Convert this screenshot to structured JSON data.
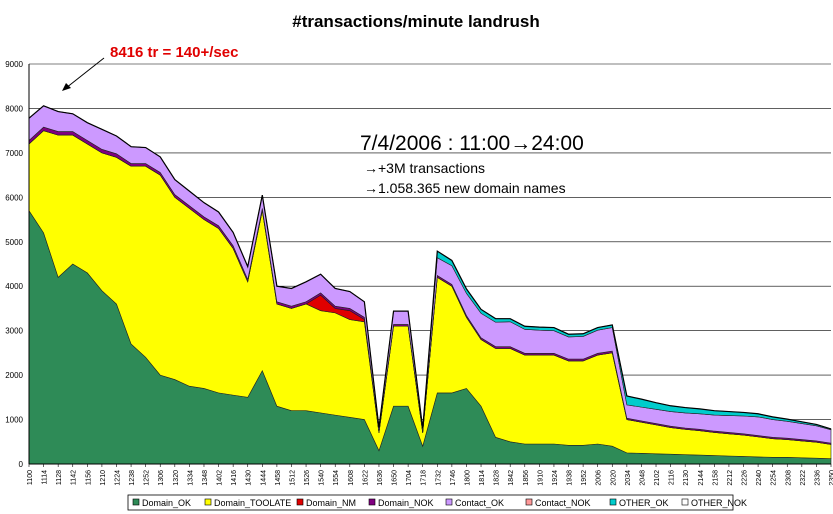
{
  "chart_data": {
    "type": "area",
    "stacked": true,
    "title": "#transactions/minute landrush",
    "xlabel": "",
    "ylabel": "",
    "ylim": [
      0,
      9000
    ],
    "yticks": [
      0,
      1000,
      2000,
      3000,
      4000,
      5000,
      6000,
      7000,
      8000,
      9000
    ],
    "grid": true,
    "legend": "bottom",
    "xtick_labels": [
      "1100",
      "1114",
      "1128",
      "1142",
      "1156",
      "1210",
      "1224",
      "1238",
      "1252",
      "1306",
      "1320",
      "1334",
      "1348",
      "1402",
      "1416",
      "1430",
      "1444",
      "1458",
      "1512",
      "1526",
      "1540",
      "1554",
      "1608",
      "1622",
      "1636",
      "1650",
      "1704",
      "1718",
      "1732",
      "1746",
      "1800",
      "1814",
      "1828",
      "1842",
      "1856",
      "1910",
      "1924",
      "1938",
      "1952",
      "2006",
      "2020",
      "2034",
      "2048",
      "2102",
      "2116",
      "2130",
      "2144",
      "2158",
      "2212",
      "2226",
      "2240",
      "2254",
      "2308",
      "2322",
      "2336",
      "2350"
    ],
    "x": [
      "1100",
      "1114",
      "1128",
      "1142",
      "1156",
      "1210",
      "1224",
      "1238",
      "1252",
      "1306",
      "1320",
      "1334",
      "1348",
      "1402",
      "1416",
      "1430",
      "1444",
      "1458",
      "1512",
      "1526",
      "1540",
      "1554",
      "1608",
      "1622",
      "1636",
      "1650",
      "1704",
      "1718",
      "1732",
      "1746",
      "1800",
      "1814",
      "1828",
      "1842",
      "1856",
      "1910",
      "1924",
      "1938",
      "1952",
      "2006",
      "2020",
      "2034",
      "2048",
      "2102",
      "2116",
      "2130",
      "2144",
      "2158",
      "2212",
      "2226",
      "2240",
      "2254",
      "2308",
      "2322",
      "2336",
      "2350"
    ],
    "series": [
      {
        "name": "Domain_OK",
        "color": "#2e8b57",
        "values": [
          5700,
          5200,
          4200,
          4500,
          4300,
          3900,
          3600,
          2700,
          2400,
          2000,
          1900,
          1750,
          1700,
          1600,
          1550,
          1500,
          2100,
          1300,
          1200,
          1200,
          1150,
          1100,
          1050,
          1000,
          300,
          1300,
          1300,
          400,
          1600,
          1600,
          1700,
          1300,
          600,
          500,
          450,
          450,
          450,
          420,
          420,
          450,
          400,
          250,
          240,
          230,
          220,
          210,
          200,
          190,
          180,
          170,
          160,
          150,
          150,
          140,
          130,
          120
        ]
      },
      {
        "name": "Domain_TOOLATE",
        "color": "#ffff00",
        "values": [
          1500,
          2300,
          3200,
          2900,
          2900,
          3100,
          3300,
          4000,
          4300,
          4500,
          4100,
          4000,
          3800,
          3700,
          3300,
          2600,
          3600,
          2300,
          2300,
          2400,
          2300,
          2300,
          2200,
          2200,
          400,
          1800,
          1800,
          300,
          2600,
          2400,
          1600,
          1500,
          2000,
          2100,
          2000,
          2000,
          2000,
          1900,
          1900,
          2000,
          2100,
          750,
          700,
          650,
          600,
          570,
          550,
          520,
          500,
          480,
          450,
          420,
          400,
          380,
          360,
          320
        ]
      },
      {
        "name": "Domain_NM",
        "color": "#e00000",
        "values": [
          0,
          0,
          0,
          0,
          0,
          0,
          0,
          0,
          0,
          0,
          0,
          0,
          0,
          0,
          0,
          0,
          0,
          0,
          0,
          0,
          350,
          100,
          200,
          50,
          0,
          0,
          0,
          0,
          0,
          0,
          0,
          0,
          0,
          0,
          0,
          0,
          0,
          0,
          0,
          0,
          0,
          0,
          0,
          0,
          0,
          0,
          0,
          0,
          0,
          0,
          0,
          0,
          0,
          0,
          0,
          0
        ]
      },
      {
        "name": "Domain_NOK",
        "color": "#800080",
        "values": [
          80,
          80,
          80,
          80,
          80,
          80,
          80,
          60,
          60,
          60,
          60,
          60,
          60,
          60,
          60,
          50,
          50,
          50,
          50,
          50,
          50,
          50,
          50,
          50,
          20,
          40,
          40,
          20,
          40,
          40,
          40,
          40,
          40,
          40,
          40,
          40,
          40,
          40,
          40,
          40,
          40,
          30,
          30,
          30,
          30,
          30,
          30,
          30,
          30,
          30,
          30,
          30,
          30,
          30,
          30,
          30
        ]
      },
      {
        "name": "Contact_OK",
        "color": "#cc99ff",
        "values": [
          500,
          480,
          450,
          400,
          400,
          450,
          400,
          380,
          360,
          350,
          340,
          330,
          320,
          310,
          300,
          290,
          300,
          350,
          400,
          450,
          420,
          400,
          380,
          350,
          100,
          300,
          300,
          80,
          400,
          420,
          500,
          550,
          550,
          560,
          540,
          520,
          510,
          500,
          510,
          520,
          530,
          300,
          310,
          320,
          330,
          340,
          350,
          360,
          380,
          400,
          420,
          400,
          380,
          360,
          340,
          300
        ]
      },
      {
        "name": "Contact_NOK",
        "color": "#ff9999",
        "values": [
          0,
          0,
          0,
          0,
          0,
          0,
          0,
          0,
          0,
          0,
          0,
          0,
          0,
          0,
          0,
          0,
          0,
          0,
          0,
          0,
          0,
          0,
          0,
          0,
          0,
          0,
          0,
          0,
          0,
          0,
          0,
          0,
          0,
          0,
          0,
          0,
          0,
          0,
          0,
          0,
          0,
          0,
          0,
          0,
          0,
          0,
          0,
          0,
          0,
          0,
          0,
          0,
          0,
          0,
          0,
          0
        ]
      },
      {
        "name": "OTHER_OK",
        "color": "#00cccc",
        "values": [
          0,
          0,
          0,
          0,
          0,
          0,
          0,
          0,
          0,
          0,
          0,
          0,
          0,
          0,
          0,
          0,
          0,
          0,
          0,
          0,
          0,
          0,
          0,
          0,
          0,
          0,
          0,
          0,
          150,
          120,
          100,
          90,
          80,
          70,
          70,
          70,
          70,
          60,
          60,
          60,
          60,
          200,
          180,
          150,
          130,
          120,
          110,
          100,
          90,
          80,
          70,
          60,
          50,
          40,
          30,
          20
        ]
      },
      {
        "name": "OTHER_NOK",
        "color": "#ffffff",
        "values": [
          0,
          0,
          0,
          0,
          0,
          0,
          0,
          0,
          0,
          0,
          0,
          0,
          0,
          0,
          0,
          0,
          0,
          0,
          0,
          0,
          0,
          0,
          0,
          0,
          0,
          0,
          0,
          0,
          0,
          0,
          0,
          0,
          0,
          0,
          0,
          0,
          0,
          0,
          0,
          0,
          0,
          0,
          0,
          0,
          0,
          0,
          0,
          0,
          0,
          0,
          0,
          0,
          0,
          0,
          0,
          0
        ]
      }
    ],
    "annotations": {
      "peak_label": "8416 tr = 140+/sec",
      "period": "7/4/2006 : 11:00→24:00",
      "transactions": "→+3M transactions",
      "domains": "→1.058.365 new domain names"
    }
  }
}
